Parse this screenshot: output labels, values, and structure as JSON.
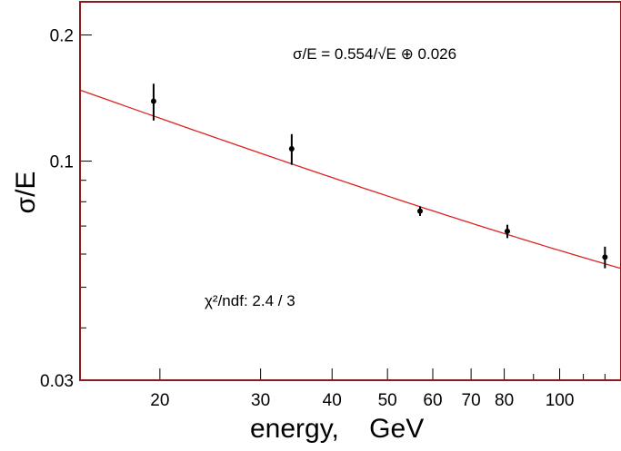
{
  "chart_data": {
    "type": "scatter",
    "title": "",
    "xlabel": "energy,    GeV",
    "ylabel": "σ/E",
    "x_scale": "log",
    "y_scale": "log",
    "xlim": [
      14.5,
      128
    ],
    "ylim": [
      0.03,
      0.24
    ],
    "x_major_ticks": [
      20,
      30,
      40,
      50,
      60,
      70,
      80,
      100
    ],
    "x_tick_labels": [
      "20",
      "30",
      "40",
      "50",
      "60",
      "70",
      "80",
      "100"
    ],
    "x_minor_ticks": [
      90,
      110,
      120
    ],
    "y_major_ticks": [
      0.03,
      0.1,
      0.2
    ],
    "y_tick_labels": [
      "0.03",
      "0.1",
      "0.2"
    ],
    "y_minor_ticks": [
      0.04,
      0.05,
      0.06,
      0.07,
      0.08,
      0.09
    ],
    "grid": false,
    "colors": {
      "fit": "#dd2222",
      "axis": "#8b1a1a",
      "points": "#000000"
    },
    "points": [
      {
        "x": 19.5,
        "y": 0.139,
        "err": 0.014
      },
      {
        "x": 34.0,
        "y": 0.107,
        "err": 0.009
      },
      {
        "x": 57.0,
        "y": 0.076,
        "err": 0.002
      },
      {
        "x": 81.0,
        "y": 0.068,
        "err": 0.0025
      },
      {
        "x": 120.0,
        "y": 0.059,
        "err": 0.0035
      }
    ],
    "fit": {
      "a": 0.554,
      "c": 0.026,
      "formula_label": "σ/E = 0.554/√E ⊕ 0.026"
    },
    "annotations": {
      "chi2_label": "χ²/ndf: 2.4 / 3"
    }
  }
}
